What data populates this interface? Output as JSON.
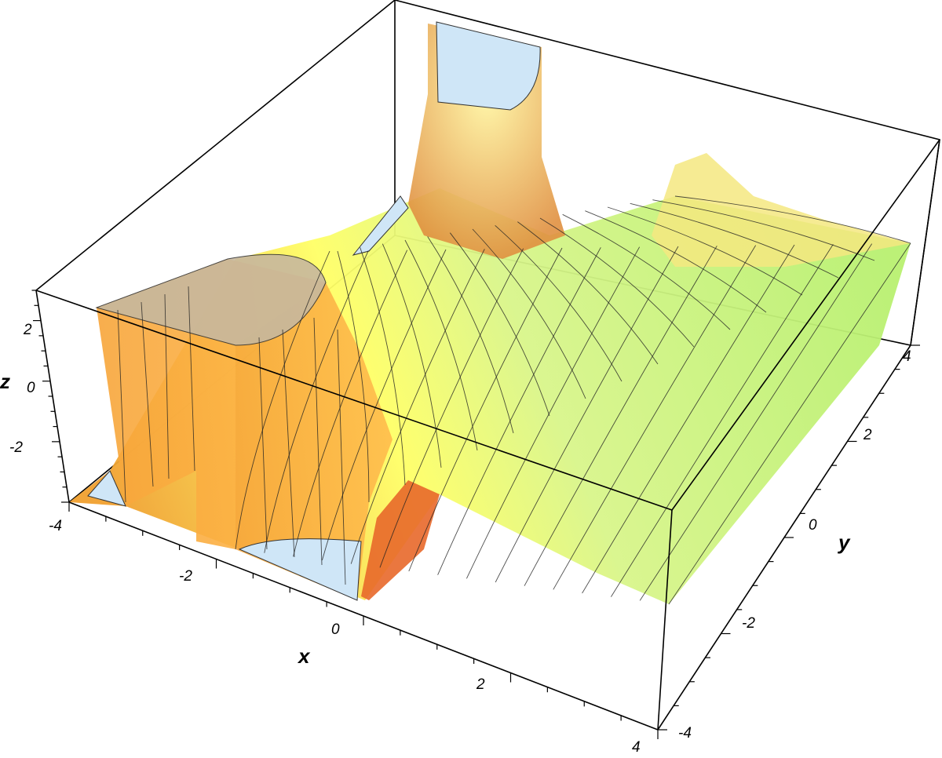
{
  "chart_data": {
    "type": "surface3d",
    "title": "",
    "xlabel": "x",
    "ylabel": "y",
    "zlabel": "z",
    "xlim": [
      -4,
      4
    ],
    "ylim": [
      -4,
      4
    ],
    "zlim": [
      -3.5,
      3.5
    ],
    "x_ticks": [
      "-4",
      "-2",
      "0",
      "2",
      "4"
    ],
    "y_ticks": [
      "-4",
      "-2",
      "0",
      "2",
      "4"
    ],
    "z_ticks": [
      "-2",
      "0",
      "2"
    ],
    "clipped_regions": [
      "top",
      "bottom"
    ],
    "mesh_lines": 15,
    "colors": {
      "low_region": "#b8f070",
      "mid_region": "#ffff66",
      "high_region": "#f0a030",
      "clip_fill": "#cfe6f7",
      "mesh": "#222222"
    }
  }
}
